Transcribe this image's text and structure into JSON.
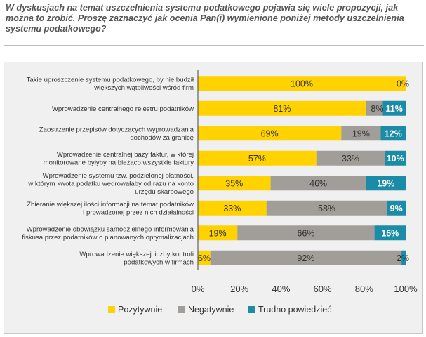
{
  "question": "W dyskusjach na temat uszczelnienia systemu podatkowego pojawia się wiele propozycji, jak można to zrobić. Proszę zaznaczyć jak ocenia Pan(i) wymienione poniżej metody uszczelnienia systemu podatkowego?",
  "colors": {
    "positive": "#ffd200",
    "negative": "#a19e99",
    "unsure": "#1a8ca8",
    "axis": "#444444",
    "text": "#333333"
  },
  "chart_data": {
    "type": "bar",
    "orientation": "horizontal",
    "stacked": true,
    "title": "",
    "xlabel": "",
    "ylabel": "",
    "xlim": [
      0,
      100
    ],
    "ticks": [
      "0%",
      "20%",
      "40%",
      "60%",
      "80%",
      "100%"
    ],
    "grid": false,
    "legend_position": "bottom",
    "categories": [
      [
        "Takie uproszczenie systemu podatkowego, by nie budził",
        "większych wątpliwości wśród firm"
      ],
      [
        "Wprowadzenie centralnego rejestru podatników"
      ],
      [
        "Zaostrzenie przepisów dotyczących wyprowadzania",
        "dochodów za granicę"
      ],
      [
        "Wprowadzenie centralnej bazy faktur, w której",
        "monitorowane byłyby na bieżąco wszystkie faktury"
      ],
      [
        "Wprowadzenie systemu tzw. podzielonej płatności,",
        "w którym kwota podatku wędrowałaby od razu na konto",
        "urzędu skarbowego"
      ],
      [
        "Zbieranie większej ilości informacji na temat podatników",
        "i prowadzonej przez nich działalności"
      ],
      [
        "Wprowadzenie obowiązku samodzielnego informowania",
        "fiskusa przez podatników o planowanych optymalizacjach"
      ],
      [
        "Wprowadzenie większej liczby kontroli",
        "podatkowych w firmach"
      ]
    ],
    "series": [
      {
        "name": "Pozytywnie",
        "values": [
          100,
          81,
          69,
          57,
          35,
          33,
          19,
          6
        ]
      },
      {
        "name": "Negatywnie",
        "values": [
          0,
          8,
          19,
          33,
          46,
          58,
          66,
          92
        ]
      },
      {
        "name": "Trudno powiedzieć",
        "values": [
          0,
          11,
          12,
          10,
          19,
          9,
          15,
          2
        ]
      }
    ],
    "data_labels": [
      [
        "100%",
        "",
        "0%"
      ],
      [
        "81%",
        "8%",
        "11%"
      ],
      [
        "69%",
        "19%",
        "12%"
      ],
      [
        "57%",
        "33%",
        "10%"
      ],
      [
        "35%",
        "46%",
        "19%"
      ],
      [
        "33%",
        "58%",
        "9%"
      ],
      [
        "19%",
        "66%",
        "15%"
      ],
      [
        "6%",
        "92%",
        "2%"
      ]
    ]
  }
}
